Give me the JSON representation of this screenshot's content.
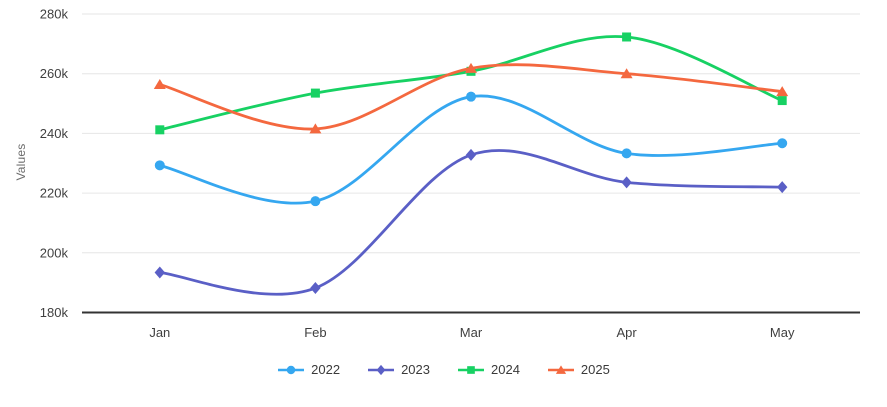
{
  "chart_data": {
    "type": "line",
    "title": "",
    "xlabel": "",
    "ylabel": "Values",
    "categories": [
      "Jan",
      "Feb",
      "Mar",
      "Apr",
      "May"
    ],
    "series": [
      {
        "name": "2022",
        "marker": "circle",
        "color": "#35A7F0",
        "values": [
          229300,
          217300,
          252300,
          233300,
          236700
        ]
      },
      {
        "name": "2023",
        "marker": "diamond",
        "color": "#5A5FC6",
        "values": [
          193400,
          188200,
          232800,
          223600,
          222000
        ]
      },
      {
        "name": "2024",
        "marker": "square",
        "color": "#17D163",
        "values": [
          241200,
          253500,
          260800,
          272300,
          251000
        ]
      },
      {
        "name": "2025",
        "marker": "triangle",
        "color": "#F4683F",
        "values": [
          256400,
          241500,
          261800,
          260000,
          254000
        ]
      }
    ],
    "y_ticks": [
      {
        "value": 180000,
        "label": "180k"
      },
      {
        "value": 200000,
        "label": "200k"
      },
      {
        "value": 220000,
        "label": "220k"
      },
      {
        "value": 240000,
        "label": "240k"
      },
      {
        "value": 260000,
        "label": "260k"
      },
      {
        "value": 280000,
        "label": "280k"
      }
    ],
    "ylim": [
      180000,
      280000
    ],
    "grid": true,
    "legend_position": "bottom",
    "curve": "smooth"
  },
  "colors": {
    "background": "#FFFFFF",
    "grid": "#E6E6E6",
    "axis_line": "#333333",
    "tick_text": "#3F3F3F",
    "axis_title_text": "#6E6E6E",
    "legend_text": "#3A3A3A"
  }
}
